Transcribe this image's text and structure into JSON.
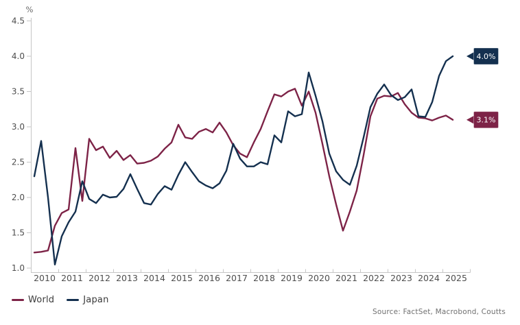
{
  "chart_data": {
    "type": "line",
    "title": "",
    "ylabel": "%",
    "xlabel": "",
    "ylim": [
      1.0,
      4.5
    ],
    "yticks": [
      1.0,
      1.5,
      2.0,
      2.5,
      3.0,
      3.5,
      4.0,
      4.5
    ],
    "categories": [
      "2010",
      "2011",
      "2012",
      "2013",
      "2014",
      "2015",
      "2016",
      "2017",
      "2018",
      "2019",
      "2020",
      "2021",
      "2022",
      "2023",
      "2024",
      "2025"
    ],
    "x_frequency": "quarterly",
    "x_start": "2010-Q1",
    "x_end": "2025-Q2",
    "grid": false,
    "legend_position": "bottom-left",
    "series": [
      {
        "name": "World",
        "color": "#7d2347",
        "callout_label": "3.1%",
        "values": [
          1.22,
          1.23,
          1.25,
          1.6,
          1.78,
          1.83,
          2.7,
          1.95,
          2.83,
          2.67,
          2.72,
          2.56,
          2.66,
          2.53,
          2.6,
          2.48,
          2.49,
          2.52,
          2.58,
          2.69,
          2.78,
          3.03,
          2.85,
          2.83,
          2.93,
          2.97,
          2.92,
          3.06,
          2.92,
          2.74,
          2.62,
          2.57,
          2.78,
          2.97,
          3.22,
          3.46,
          3.43,
          3.5,
          3.54,
          3.3,
          3.5,
          3.2,
          2.76,
          2.3,
          1.9,
          1.53,
          1.8,
          2.1,
          2.6,
          3.15,
          3.4,
          3.44,
          3.43,
          3.48,
          3.32,
          3.2,
          3.13,
          3.12,
          3.09,
          3.13,
          3.16,
          3.1
        ]
      },
      {
        "name": "Japan",
        "color": "#14304f",
        "callout_label": "4.0%",
        "values": [
          2.3,
          2.8,
          2.0,
          1.05,
          1.45,
          1.65,
          1.8,
          2.23,
          1.98,
          1.92,
          2.04,
          2.0,
          2.01,
          2.12,
          2.33,
          2.12,
          1.92,
          1.9,
          2.05,
          2.16,
          2.11,
          2.32,
          2.5,
          2.36,
          2.23,
          2.17,
          2.13,
          2.2,
          2.38,
          2.76,
          2.55,
          2.44,
          2.44,
          2.5,
          2.47,
          2.88,
          2.78,
          3.22,
          3.15,
          3.18,
          3.77,
          3.44,
          3.08,
          2.62,
          2.37,
          2.25,
          2.18,
          2.45,
          2.85,
          3.28,
          3.47,
          3.6,
          3.45,
          3.38,
          3.42,
          3.53,
          3.15,
          3.14,
          3.35,
          3.72,
          3.93,
          4.0
        ]
      }
    ]
  },
  "legend": {
    "items": [
      {
        "label": "World",
        "color": "#7d2347"
      },
      {
        "label": "Japan",
        "color": "#14304f"
      }
    ]
  },
  "source_text": "Source: FactSet, Macrobond, Coutts",
  "colors": {
    "axis": "#c6c6c6",
    "tick_label": "#4d4d4d",
    "unit_label": "#6a6a6a",
    "callout_text": "#ffffff",
    "legend_text": "#3a3a3a",
    "source_text": "#707070"
  }
}
